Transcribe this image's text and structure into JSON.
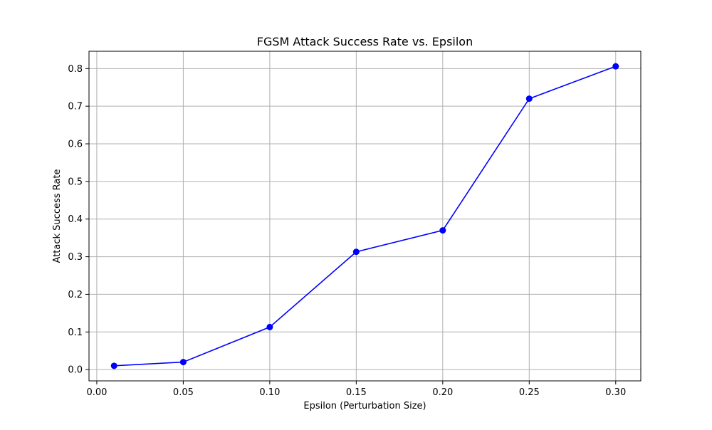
{
  "chart_data": {
    "type": "line",
    "title": "FGSM Attack Success Rate vs. Epsilon",
    "xlabel": "Epsilon (Perturbation Size)",
    "ylabel": "Attack Success Rate",
    "x": [
      0.01,
      0.05,
      0.1,
      0.15,
      0.2,
      0.25,
      0.3
    ],
    "series": [
      {
        "values": [
          0.01,
          0.02,
          0.113,
          0.313,
          0.37,
          0.72,
          0.806
        ],
        "color": "#0000ff",
        "marker": "circle"
      }
    ],
    "xlim": [
      -0.0045,
      0.3145
    ],
    "ylim": [
      -0.03,
      0.846
    ],
    "xticks": [
      0.0,
      0.05,
      0.1,
      0.15,
      0.2,
      0.25,
      0.3
    ],
    "xtick_labels": [
      "0.00",
      "0.05",
      "0.10",
      "0.15",
      "0.20",
      "0.25",
      "0.30"
    ],
    "yticks": [
      0.0,
      0.1,
      0.2,
      0.3,
      0.4,
      0.5,
      0.6,
      0.7,
      0.8
    ],
    "ytick_labels": [
      "0.0",
      "0.1",
      "0.2",
      "0.3",
      "0.4",
      "0.5",
      "0.6",
      "0.7",
      "0.8"
    ],
    "grid": true,
    "grid_color": "#b0b0b0",
    "axes_color": "#000000"
  }
}
